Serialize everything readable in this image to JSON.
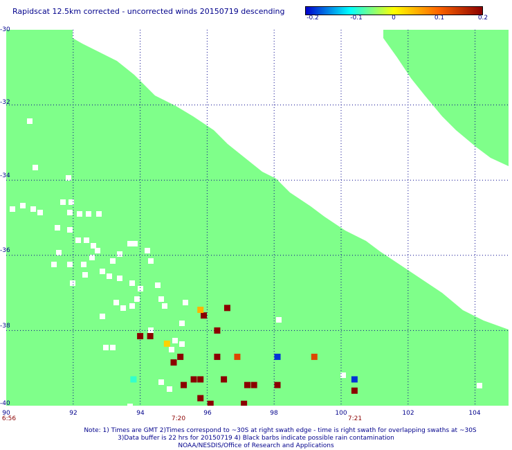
{
  "title": "Rapidscat 12.5km corrected - uncorrected winds 20150719 descending",
  "colorbar": {
    "labels": [
      "-0.2",
      "-0.1",
      "0",
      "0.1",
      "0.2"
    ],
    "range": [
      -0.2,
      0.2
    ],
    "colors": [
      "#0000cc",
      "#00ffff",
      "#ffff00",
      "#ff6600",
      "#8b0000"
    ]
  },
  "map": {
    "lon_range": [
      90,
      105
    ],
    "lat_range": [
      -40,
      -30
    ],
    "lon_ticks": [
      "90",
      "92",
      "94",
      "96",
      "98",
      "100",
      "102",
      "104"
    ],
    "lat_ticks": [
      "-30",
      "-32",
      "-34",
      "-36",
      "-38",
      "-40"
    ],
    "time_labels": [
      {
        "lon": 90,
        "text": "6:56"
      },
      {
        "lon": 95,
        "text": "7:20"
      },
      {
        "lon": 100.4,
        "text": "7:21"
      }
    ],
    "swath_color": "#7fff8a",
    "grid": true,
    "cells": [
      {
        "lon": 96.3,
        "lat": -38.0,
        "v": 0.2
      },
      {
        "lon": 96.6,
        "lat": -37.4,
        "v": 0.2
      },
      {
        "lon": 95.9,
        "lat": -37.6,
        "v": 0.2
      },
      {
        "lon": 94.0,
        "lat": -38.15,
        "v": 0.2
      },
      {
        "lon": 94.3,
        "lat": -38.15,
        "v": 0.2
      },
      {
        "lon": 95.2,
        "lat": -38.7,
        "v": 0.2
      },
      {
        "lon": 95.0,
        "lat": -38.85,
        "v": 0.2
      },
      {
        "lon": 96.3,
        "lat": -38.7,
        "v": 0.2
      },
      {
        "lon": 95.6,
        "lat": -39.3,
        "v": 0.2
      },
      {
        "lon": 95.8,
        "lat": -39.3,
        "v": 0.2
      },
      {
        "lon": 96.5,
        "lat": -39.3,
        "v": 0.2
      },
      {
        "lon": 95.3,
        "lat": -39.45,
        "v": 0.2
      },
      {
        "lon": 97.2,
        "lat": -39.45,
        "v": 0.2
      },
      {
        "lon": 97.4,
        "lat": -39.45,
        "v": 0.2
      },
      {
        "lon": 98.1,
        "lat": -39.45,
        "v": 0.2
      },
      {
        "lon": 95.8,
        "lat": -39.8,
        "v": 0.2
      },
      {
        "lon": 96.1,
        "lat": -39.95,
        "v": 0.2
      },
      {
        "lon": 97.1,
        "lat": -39.95,
        "v": 0.2
      },
      {
        "lon": 100.4,
        "lat": -39.6,
        "v": 0.2
      },
      {
        "lon": 95.8,
        "lat": -37.45,
        "v": 0.05
      },
      {
        "lon": 94.8,
        "lat": -38.35,
        "v": 0.03
      },
      {
        "lon": 96.9,
        "lat": -38.7,
        "v": 0.13
      },
      {
        "lon": 99.2,
        "lat": -38.7,
        "v": 0.13
      },
      {
        "lon": 98.1,
        "lat": -38.7,
        "v": -0.18
      },
      {
        "lon": 100.4,
        "lat": -39.3,
        "v": -0.18
      },
      {
        "lon": 93.8,
        "lat": -39.3,
        "v": -0.08
      }
    ]
  },
  "notes": [
    "Note: 1) Times are GMT 2)Times correspond to ~30S at right swath edge - time is right swath for overlapping swaths at ~30S",
    "3)Data buffer is 22 hrs for 20150719 4) Black barbs indicate possible rain contamination",
    "NOAA/NESDIS/Office of Research and Applications"
  ]
}
